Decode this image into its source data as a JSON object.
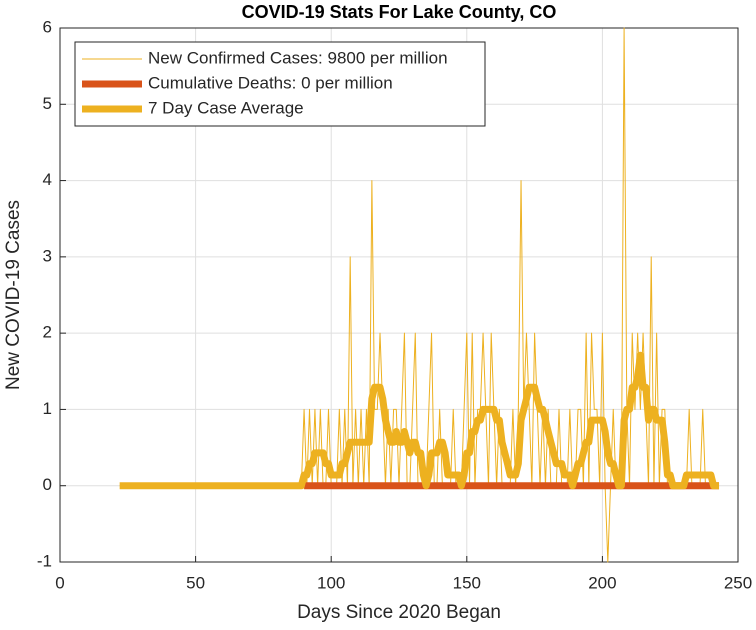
{
  "chart_data": {
    "type": "line",
    "title": "COVID-19 Stats For Lake County, CO",
    "xlabel": "Days Since 2020 Began",
    "ylabel": "New COVID-19 Cases",
    "xlim": [
      0,
      250
    ],
    "xticks": [
      0,
      50,
      100,
      150,
      200,
      250
    ],
    "ylim": [
      -1,
      6
    ],
    "yticks": [
      -1,
      0,
      1,
      2,
      3,
      4,
      5,
      6
    ],
    "grid": true,
    "legend": "upper left",
    "x": [
      22,
      23,
      24,
      25,
      26,
      27,
      28,
      29,
      30,
      31,
      32,
      33,
      34,
      35,
      36,
      37,
      38,
      39,
      40,
      41,
      42,
      43,
      44,
      45,
      46,
      47,
      48,
      49,
      50,
      51,
      52,
      53,
      54,
      55,
      56,
      57,
      58,
      59,
      60,
      61,
      62,
      63,
      64,
      65,
      66,
      67,
      68,
      69,
      70,
      71,
      72,
      73,
      74,
      75,
      76,
      77,
      78,
      79,
      80,
      81,
      82,
      83,
      84,
      85,
      86,
      87,
      88,
      89,
      90,
      91,
      92,
      93,
      94,
      95,
      96,
      97,
      98,
      99,
      100,
      101,
      102,
      103,
      104,
      105,
      106,
      107,
      108,
      109,
      110,
      111,
      112,
      113,
      114,
      115,
      116,
      117,
      118,
      119,
      120,
      121,
      122,
      123,
      124,
      125,
      126,
      127,
      128,
      129,
      130,
      131,
      132,
      133,
      134,
      135,
      136,
      137,
      138,
      139,
      140,
      141,
      142,
      143,
      144,
      145,
      146,
      147,
      148,
      149,
      150,
      151,
      152,
      153,
      154,
      155,
      156,
      157,
      158,
      159,
      160,
      161,
      162,
      163,
      164,
      165,
      166,
      167,
      168,
      169,
      170,
      171,
      172,
      173,
      174,
      175,
      176,
      177,
      178,
      179,
      180,
      181,
      182,
      183,
      184,
      185,
      186,
      187,
      188,
      189,
      190,
      191,
      192,
      193,
      194,
      195,
      196,
      197,
      198,
      199,
      200,
      201,
      202,
      203,
      204,
      205,
      206,
      207,
      208,
      209,
      210,
      211,
      212,
      213,
      214,
      215,
      216,
      217,
      218,
      219,
      220,
      221,
      222,
      223,
      224,
      225,
      226,
      227,
      228,
      229,
      230,
      231,
      232,
      233,
      234,
      235,
      236,
      237,
      238,
      239,
      240,
      241,
      242,
      243
    ],
    "series": [
      {
        "name": "New Confirmed Cases: 9800 per million",
        "color": "#EDB120",
        "width": 1,
        "values": [
          0,
          0,
          0,
          0,
          0,
          0,
          0,
          0,
          0,
          0,
          0,
          0,
          0,
          0,
          0,
          0,
          0,
          0,
          0,
          0,
          0,
          0,
          0,
          0,
          0,
          0,
          0,
          0,
          0,
          0,
          0,
          0,
          0,
          0,
          0,
          0,
          0,
          0,
          0,
          0,
          0,
          0,
          0,
          0,
          0,
          0,
          0,
          0,
          0,
          0,
          0,
          0,
          0,
          0,
          0,
          0,
          0,
          0,
          0,
          0,
          0,
          0,
          0,
          0,
          0,
          0,
          0,
          0,
          1,
          0,
          1,
          0,
          1,
          0,
          1,
          0,
          0,
          1,
          0,
          0,
          0,
          1,
          0,
          1,
          0,
          3,
          0,
          1,
          0,
          1,
          0,
          1,
          0,
          4,
          1,
          1,
          2,
          1,
          0,
          1,
          0,
          1,
          1,
          0,
          1,
          2,
          0,
          0,
          1,
          2,
          0,
          0,
          0,
          0,
          1,
          2,
          0,
          0,
          1,
          0,
          0,
          0,
          0,
          1,
          0,
          0,
          0,
          1,
          2,
          0,
          2,
          0,
          1,
          1,
          2,
          1,
          0,
          2,
          1,
          0,
          1,
          0,
          0,
          0,
          0,
          1,
          0,
          1,
          4,
          1,
          2,
          1,
          0,
          2,
          1,
          0,
          1,
          0,
          1,
          0,
          0,
          0,
          1,
          0,
          0,
          0,
          1,
          0,
          0,
          1,
          1,
          0,
          2,
          0,
          2,
          1,
          1,
          0,
          2,
          0,
          -1,
          0,
          1,
          0,
          0,
          0,
          6,
          1,
          0,
          2,
          1,
          2,
          1,
          2,
          1,
          0,
          3,
          0,
          2,
          0,
          1,
          1,
          0,
          0,
          0,
          0,
          0,
          0,
          0,
          0,
          1,
          0,
          0,
          0,
          0,
          1,
          0,
          0,
          0,
          0,
          0,
          0
        ]
      },
      {
        "name": "Cumulative Deaths: 0 per million",
        "color": "#D95319",
        "width": 7,
        "values": [
          null,
          null,
          null,
          null,
          null,
          null,
          null,
          null,
          null,
          null,
          null,
          null,
          null,
          null,
          null,
          null,
          null,
          null,
          null,
          null,
          null,
          null,
          null,
          null,
          null,
          null,
          null,
          null,
          null,
          null,
          null,
          null,
          null,
          null,
          null,
          null,
          null,
          null,
          null,
          null,
          null,
          null,
          null,
          null,
          null,
          null,
          null,
          null,
          null,
          null,
          null,
          null,
          null,
          null,
          null,
          null,
          null,
          null,
          null,
          null,
          null,
          null,
          null,
          null,
          null,
          null,
          null,
          null,
          0,
          0,
          0,
          0,
          0,
          0,
          0,
          0,
          0,
          0,
          0,
          0,
          0,
          0,
          0,
          0,
          0,
          0,
          0,
          0,
          0,
          0,
          0,
          0,
          0,
          0,
          0,
          0,
          0,
          0,
          0,
          0,
          0,
          0,
          0,
          0,
          0,
          0,
          0,
          0,
          0,
          0,
          0,
          0,
          0,
          0,
          0,
          0,
          0,
          0,
          0,
          0,
          0,
          0,
          0,
          0,
          0,
          0,
          0,
          0,
          0,
          0,
          0,
          0,
          0,
          0,
          0,
          0,
          0,
          0,
          0,
          0,
          0,
          0,
          0,
          0,
          0,
          0,
          0,
          0,
          0,
          0,
          0,
          0,
          0,
          0,
          0,
          0,
          0,
          0,
          0,
          0,
          0,
          0,
          0,
          0,
          0,
          0,
          0,
          0,
          0,
          0,
          0,
          0,
          0,
          0,
          0,
          0,
          0,
          0,
          0,
          0,
          0,
          0,
          0,
          0,
          0,
          0,
          0,
          0,
          0,
          0,
          0,
          0,
          0,
          0,
          0,
          0,
          0,
          0,
          0,
          0,
          0,
          0,
          0,
          0,
          0,
          0,
          0,
          0,
          0,
          0,
          0,
          0,
          0,
          0,
          0,
          0,
          0,
          0,
          0,
          0,
          0,
          0
        ]
      },
      {
        "name": "7 Day Case Average",
        "color": "#EDB120",
        "width": 7,
        "values": [
          0,
          0,
          0,
          0,
          0,
          0,
          0,
          0,
          0,
          0,
          0,
          0,
          0,
          0,
          0,
          0,
          0,
          0,
          0,
          0,
          0,
          0,
          0,
          0,
          0,
          0,
          0,
          0,
          0,
          0,
          0,
          0,
          0,
          0,
          0,
          0,
          0,
          0,
          0,
          0,
          0,
          0,
          0,
          0,
          0,
          0,
          0,
          0,
          0,
          0,
          0,
          0,
          0,
          0,
          0,
          0,
          0,
          0,
          0,
          0,
          0,
          0,
          0,
          0,
          0,
          0,
          0,
          0,
          0.14,
          0.14,
          0.29,
          0.29,
          0.43,
          0.43,
          0.43,
          0.43,
          0.29,
          0.29,
          0.14,
          0.14,
          0.14,
          0.14,
          0.29,
          0.29,
          0.43,
          0.57,
          0.57,
          0.57,
          0.57,
          0.57,
          0.57,
          0.57,
          0.57,
          1.14,
          1.29,
          1.29,
          1.29,
          1.14,
          0.86,
          0.71,
          0.57,
          0.57,
          0.71,
          0.57,
          0.57,
          0.71,
          0.57,
          0.43,
          0.57,
          0.57,
          0.43,
          0.43,
          0.14,
          0,
          0.14,
          0.43,
          0.43,
          0.43,
          0.57,
          0.57,
          0.43,
          0.14,
          0.14,
          0.14,
          0.14,
          0.14,
          0,
          0.14,
          0.43,
          0.43,
          0.71,
          0.71,
          0.86,
          0.86,
          1,
          1,
          1,
          1,
          1,
          0.86,
          0.86,
          0.57,
          0.43,
          0.29,
          0.14,
          0.14,
          0.14,
          0.29,
          0.86,
          1,
          1.14,
          1.29,
          1.29,
          1.29,
          1.14,
          1,
          1,
          0.86,
          0.71,
          0.57,
          0.43,
          0.29,
          0.29,
          0.29,
          0.14,
          0.14,
          0.14,
          0,
          0.14,
          0.29,
          0.29,
          0.43,
          0.57,
          0.57,
          0.86,
          0.86,
          0.86,
          0.86,
          0.86,
          0.71,
          0.43,
          0.29,
          0.29,
          0.14,
          0,
          0,
          0.86,
          1,
          1,
          1.29,
          1.29,
          1.43,
          1.71,
          1.29,
          1.29,
          0.86,
          1,
          1,
          0.86,
          0.86,
          0.86,
          0.57,
          0.14,
          0.14,
          0,
          0,
          0,
          0,
          0,
          0.14,
          0.14,
          0.14,
          0.14,
          0.14,
          0.14,
          0.14,
          0.14,
          0.14,
          0.14,
          0,
          0,
          0
        ]
      }
    ]
  }
}
